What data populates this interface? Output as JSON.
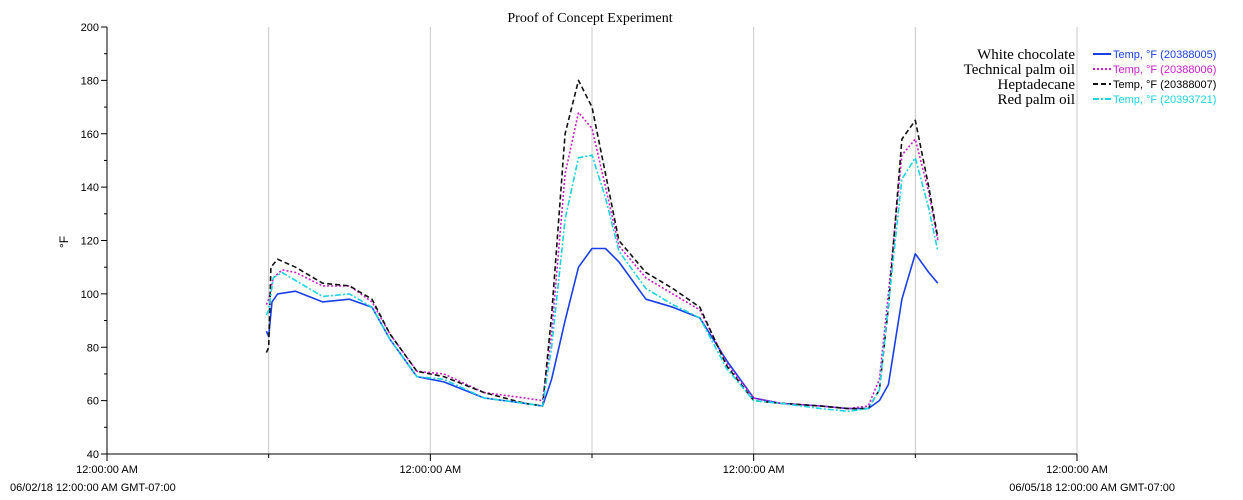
{
  "chart_data": {
    "type": "line",
    "title": "Proof of Concept Experiment",
    "ylabel": "°F",
    "ylim": [
      40,
      200
    ],
    "yticks": [
      40,
      60,
      80,
      100,
      120,
      140,
      160,
      180,
      200
    ],
    "xlim": [
      "2018-06-02T00:00",
      "2018-06-05T00:00"
    ],
    "xticks": [
      {
        "t": "2018-06-02T00:00",
        "label": "12:00:00 AM"
      },
      {
        "t": "2018-06-03T00:00",
        "label": "12:00:00 AM"
      },
      {
        "t": "2018-06-04T00:00",
        "label": "12:00:00 AM"
      },
      {
        "t": "2018-06-05T00:00",
        "label": "12:00:00 AM"
      }
    ],
    "x_range_labels": {
      "start": "06/02/18 12:00:00 AM GMT-07:00",
      "end": "06/05/18 12:00:00 AM GMT-07:00"
    },
    "vertical_gridlines": [
      "2018-06-02T12:00",
      "2018-06-03T00:00",
      "2018-06-03T12:00",
      "2018-06-04T00:00",
      "2018-06-04T12:00",
      "2018-06-05T00:00"
    ],
    "legend": {
      "placement": "top-right",
      "annotations": [
        "White chocolate",
        "Technical palm oil",
        "Heptadecane",
        "Red palm oil"
      ]
    },
    "series": [
      {
        "name": "Temp, °F (20388005)",
        "color": "#1a3fe8",
        "dash": "solid",
        "points": [
          [
            "2018-06-02T11:50",
            86
          ],
          [
            "2018-06-02T12:00",
            84
          ],
          [
            "2018-06-02T12:15",
            97
          ],
          [
            "2018-06-02T12:40",
            100
          ],
          [
            "2018-06-02T14:00",
            101
          ],
          [
            "2018-06-02T16:00",
            97
          ],
          [
            "2018-06-02T18:00",
            98
          ],
          [
            "2018-06-02T19:40",
            95
          ],
          [
            "2018-06-02T21:00",
            83
          ],
          [
            "2018-06-02T23:00",
            69
          ],
          [
            "2018-06-03T01:00",
            67
          ],
          [
            "2018-06-03T04:00",
            61
          ],
          [
            "2018-06-03T07:00",
            59
          ],
          [
            "2018-06-03T08:20",
            58
          ],
          [
            "2018-06-03T09:00",
            68
          ],
          [
            "2018-06-03T10:00",
            90
          ],
          [
            "2018-06-03T11:00",
            110
          ],
          [
            "2018-06-03T12:00",
            117
          ],
          [
            "2018-06-03T13:00",
            117
          ],
          [
            "2018-06-03T14:00",
            112
          ],
          [
            "2018-06-03T16:00",
            98
          ],
          [
            "2018-06-03T18:00",
            95
          ],
          [
            "2018-06-03T20:00",
            91
          ],
          [
            "2018-06-03T22:00",
            75
          ],
          [
            "2018-06-04T00:00",
            61
          ],
          [
            "2018-06-04T02:00",
            59
          ],
          [
            "2018-06-04T05:00",
            58
          ],
          [
            "2018-06-04T07:00",
            57
          ],
          [
            "2018-06-04T08:30",
            57
          ],
          [
            "2018-06-04T09:20",
            60
          ],
          [
            "2018-06-04T10:00",
            66
          ],
          [
            "2018-06-04T11:00",
            98
          ],
          [
            "2018-06-04T12:00",
            115
          ],
          [
            "2018-06-04T13:00",
            108
          ],
          [
            "2018-06-04T13:40",
            104
          ]
        ]
      },
      {
        "name": "Temp, °F (20388006)",
        "color": "#c81fc8",
        "dash": "dotted",
        "points": [
          [
            "2018-06-02T11:50",
            96
          ],
          [
            "2018-06-02T12:00",
            98
          ],
          [
            "2018-06-02T12:20",
            106
          ],
          [
            "2018-06-02T13:00",
            109
          ],
          [
            "2018-06-02T14:00",
            108
          ],
          [
            "2018-06-02T16:00",
            103
          ],
          [
            "2018-06-02T18:00",
            103
          ],
          [
            "2018-06-02T19:40",
            97
          ],
          [
            "2018-06-02T21:00",
            85
          ],
          [
            "2018-06-02T23:00",
            71
          ],
          [
            "2018-06-03T01:00",
            70
          ],
          [
            "2018-06-03T04:00",
            63
          ],
          [
            "2018-06-03T07:00",
            61
          ],
          [
            "2018-06-03T08:20",
            60
          ],
          [
            "2018-06-03T09:00",
            85
          ],
          [
            "2018-06-03T10:00",
            145
          ],
          [
            "2018-06-03T11:00",
            168
          ],
          [
            "2018-06-03T12:00",
            162
          ],
          [
            "2018-06-03T13:00",
            140
          ],
          [
            "2018-06-03T14:00",
            118
          ],
          [
            "2018-06-03T16:00",
            106
          ],
          [
            "2018-06-03T18:00",
            100
          ],
          [
            "2018-06-03T20:00",
            94
          ],
          [
            "2018-06-03T22:00",
            74
          ],
          [
            "2018-06-04T00:00",
            61
          ],
          [
            "2018-06-04T02:00",
            59
          ],
          [
            "2018-06-04T05:00",
            58
          ],
          [
            "2018-06-04T07:00",
            57
          ],
          [
            "2018-06-04T08:30",
            58
          ],
          [
            "2018-06-04T09:20",
            68
          ],
          [
            "2018-06-04T10:00",
            100
          ],
          [
            "2018-06-04T11:00",
            152
          ],
          [
            "2018-06-04T12:00",
            158
          ],
          [
            "2018-06-04T13:00",
            138
          ],
          [
            "2018-06-04T13:40",
            120
          ]
        ]
      },
      {
        "name": "Temp, °F (20388007)",
        "color": "#111111",
        "dash": "dashed",
        "points": [
          [
            "2018-06-02T11:50",
            78
          ],
          [
            "2018-06-02T12:00",
            80
          ],
          [
            "2018-06-02T12:10",
            110
          ],
          [
            "2018-06-02T12:40",
            113
          ],
          [
            "2018-06-02T14:00",
            110
          ],
          [
            "2018-06-02T16:00",
            104
          ],
          [
            "2018-06-02T18:00",
            103
          ],
          [
            "2018-06-02T19:40",
            98
          ],
          [
            "2018-06-02T21:00",
            85
          ],
          [
            "2018-06-02T23:00",
            71
          ],
          [
            "2018-06-03T01:00",
            69
          ],
          [
            "2018-06-03T04:00",
            63
          ],
          [
            "2018-06-03T07:00",
            59
          ],
          [
            "2018-06-03T08:20",
            58
          ],
          [
            "2018-06-03T09:00",
            92
          ],
          [
            "2018-06-03T10:00",
            160
          ],
          [
            "2018-06-03T11:00",
            180
          ],
          [
            "2018-06-03T12:00",
            170
          ],
          [
            "2018-06-03T13:00",
            145
          ],
          [
            "2018-06-03T14:00",
            120
          ],
          [
            "2018-06-03T16:00",
            108
          ],
          [
            "2018-06-03T18:00",
            102
          ],
          [
            "2018-06-03T20:00",
            95
          ],
          [
            "2018-06-03T22:00",
            73
          ],
          [
            "2018-06-04T00:00",
            60
          ],
          [
            "2018-06-04T02:00",
            59
          ],
          [
            "2018-06-04T05:00",
            58
          ],
          [
            "2018-06-04T07:00",
            57
          ],
          [
            "2018-06-04T08:30",
            57
          ],
          [
            "2018-06-04T09:20",
            64
          ],
          [
            "2018-06-04T10:00",
            95
          ],
          [
            "2018-06-04T11:00",
            158
          ],
          [
            "2018-06-04T12:00",
            165
          ],
          [
            "2018-06-04T13:00",
            140
          ],
          [
            "2018-06-04T13:40",
            121
          ]
        ]
      },
      {
        "name": "Temp, °F (20393721)",
        "color": "#1fd3df",
        "dash": "dashdot",
        "points": [
          [
            "2018-06-02T11:50",
            92
          ],
          [
            "2018-06-02T12:00",
            94
          ],
          [
            "2018-06-02T12:20",
            106
          ],
          [
            "2018-06-02T13:00",
            108
          ],
          [
            "2018-06-02T14:00",
            105
          ],
          [
            "2018-06-02T16:00",
            99
          ],
          [
            "2018-06-02T18:00",
            100
          ],
          [
            "2018-06-02T19:40",
            95
          ],
          [
            "2018-06-02T21:00",
            83
          ],
          [
            "2018-06-02T23:00",
            69
          ],
          [
            "2018-06-03T01:00",
            68
          ],
          [
            "2018-06-03T04:00",
            61
          ],
          [
            "2018-06-03T07:00",
            59
          ],
          [
            "2018-06-03T08:20",
            58
          ],
          [
            "2018-06-03T09:00",
            80
          ],
          [
            "2018-06-03T10:00",
            128
          ],
          [
            "2018-06-03T11:00",
            151
          ],
          [
            "2018-06-03T12:00",
            152
          ],
          [
            "2018-06-03T13:00",
            136
          ],
          [
            "2018-06-03T14:00",
            116
          ],
          [
            "2018-06-03T16:00",
            102
          ],
          [
            "2018-06-03T18:00",
            96
          ],
          [
            "2018-06-03T20:00",
            91
          ],
          [
            "2018-06-03T22:00",
            72
          ],
          [
            "2018-06-04T00:00",
            60
          ],
          [
            "2018-06-04T02:00",
            59
          ],
          [
            "2018-06-04T05:00",
            57
          ],
          [
            "2018-06-04T07:00",
            56
          ],
          [
            "2018-06-04T08:30",
            57
          ],
          [
            "2018-06-04T09:20",
            64
          ],
          [
            "2018-06-04T10:00",
            96
          ],
          [
            "2018-06-04T11:00",
            143
          ],
          [
            "2018-06-04T12:00",
            151
          ],
          [
            "2018-06-04T13:00",
            132
          ],
          [
            "2018-06-04T13:40",
            116
          ]
        ]
      }
    ]
  }
}
